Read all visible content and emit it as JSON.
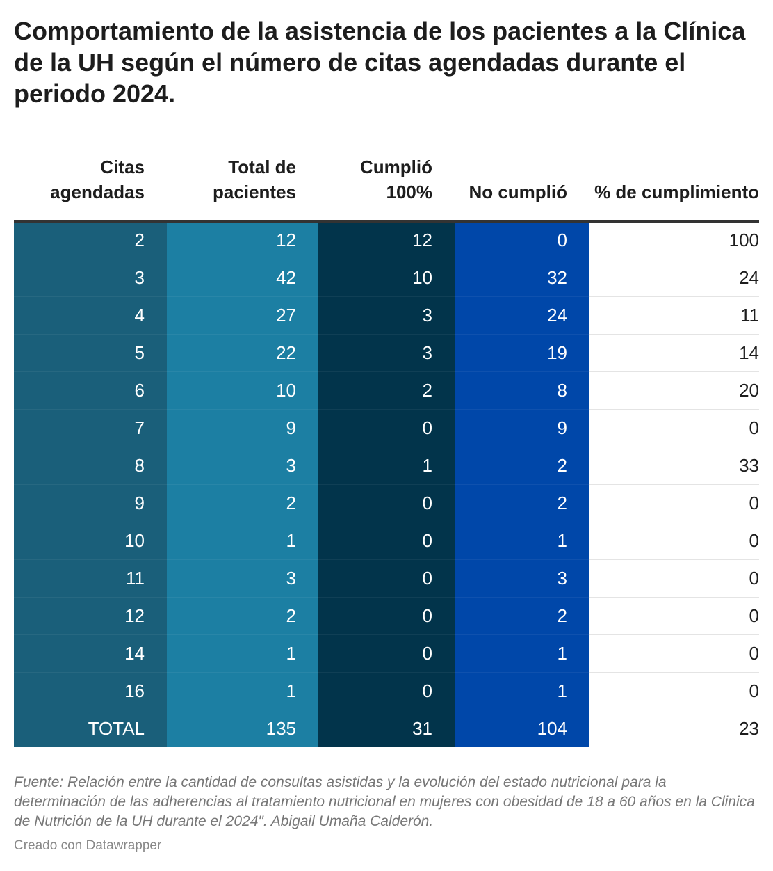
{
  "chart_data": {
    "type": "table",
    "title": "Comportamiento de la asistencia de los pacientes a la Clínica de la UH según el número de citas agendadas durante el periodo 2024.",
    "columns": [
      "Citas agendadas",
      "Total de pacientes",
      "Cumplió 100%",
      "No cumplió",
      "% de cumplimiento"
    ],
    "rows": [
      [
        "2",
        "12",
        "12",
        "0",
        "100"
      ],
      [
        "3",
        "42",
        "10",
        "32",
        "24"
      ],
      [
        "4",
        "27",
        "3",
        "24",
        "11"
      ],
      [
        "5",
        "22",
        "3",
        "19",
        "14"
      ],
      [
        "6",
        "10",
        "2",
        "8",
        "20"
      ],
      [
        "7",
        "9",
        "0",
        "9",
        "0"
      ],
      [
        "8",
        "3",
        "1",
        "2",
        "33"
      ],
      [
        "9",
        "2",
        "0",
        "2",
        "0"
      ],
      [
        "10",
        "1",
        "0",
        "1",
        "0"
      ],
      [
        "11",
        "3",
        "0",
        "3",
        "0"
      ],
      [
        "12",
        "2",
        "0",
        "2",
        "0"
      ],
      [
        "14",
        "1",
        "0",
        "1",
        "0"
      ],
      [
        "16",
        "1",
        "0",
        "1",
        "0"
      ],
      [
        "TOTAL",
        "135",
        "31",
        "104",
        "23"
      ]
    ],
    "column_colors": [
      "#1a5f7a",
      "#1c7fa3",
      "#02344b",
      "#0047a9",
      "#ffffff"
    ]
  },
  "source": "Fuente: Relación entre la cantidad de consultas asistidas y la evolución del estado nutricional para la determinación de las adherencias al tratamiento nutricional en mujeres con obesidad de 18 a 60 años en la Clinica de Nutrición de la UH durante el 2024\". Abigail Umaña Calderón.",
  "credit": "Creado con Datawrapper"
}
